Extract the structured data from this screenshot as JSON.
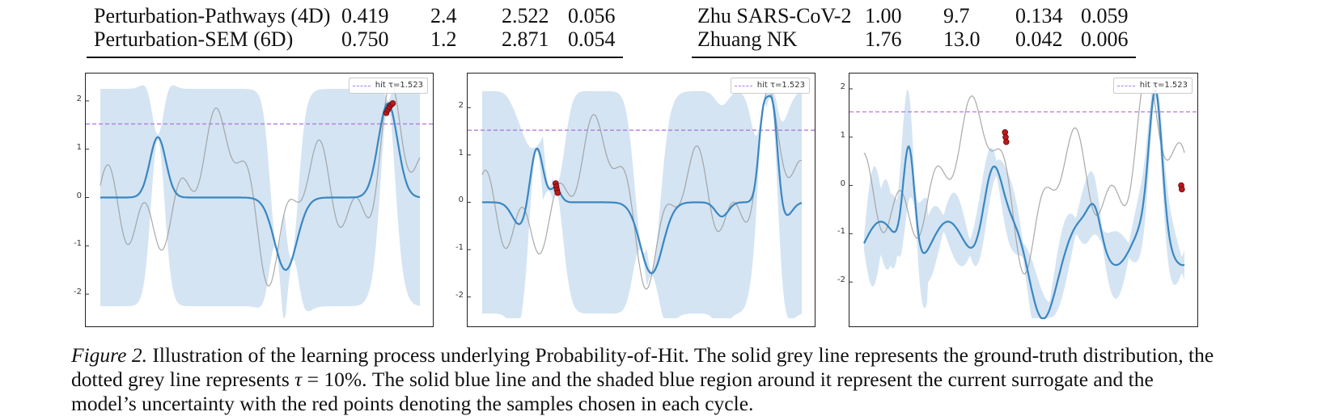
{
  "table_left": {
    "rows": [
      {
        "name": "Perturbation-Pathways (4D)",
        "c1": "0.419",
        "c2": "2.4",
        "c3": "2.522",
        "c4": "0.056"
      },
      {
        "name": "Perturbation-SEM (6D)",
        "c1": "0.750",
        "c2": "1.2",
        "c3": "2.871",
        "c4": "0.054"
      }
    ]
  },
  "table_right": {
    "rows": [
      {
        "name": "Zhu SARS-CoV-2",
        "c1": "1.00",
        "c2": "9.7",
        "c3": "0.134",
        "c4": "0.059"
      },
      {
        "name": "Zhuang NK",
        "c1": "1.76",
        "c2": "13.0",
        "c3": "0.042",
        "c4": "0.006"
      }
    ]
  },
  "figure": {
    "legend_label": "hit τ=1.523",
    "threshold": 1.523,
    "colors": {
      "surrogate": "#3a86c0",
      "band": "#c6dbef",
      "truth": "#9a9a9a",
      "threshold": "#b07be0",
      "points": "#c0181b"
    },
    "panels": [
      {
        "ytick_labels": [
          "2",
          "1",
          "0",
          "-1",
          "-2"
        ],
        "ylim": [
          -2.5,
          2.4
        ]
      },
      {
        "ytick_labels": [
          "2",
          "1",
          "0",
          "-1",
          "-2"
        ],
        "ylim": [
          -2.45,
          2.55
        ]
      },
      {
        "ytick_labels": [
          "2",
          "1",
          "0",
          "-1",
          "-2"
        ],
        "ylim": [
          -2.75,
          2.15
        ]
      }
    ]
  },
  "caption": {
    "fig_label": "Figure 2.",
    "line1": " Illustration of the learning process underlying Probability-of-Hit. The solid grey line represents the ground-truth distribution, the",
    "line2_pre": "dotted grey line represents ",
    "tau": "τ",
    "line2_eq": " = 10%. ",
    "line2_post": "The solid blue line and the shaded blue region around it represent the current surrogate and the",
    "line3": "model’s uncertainty with the red points denoting the samples chosen in each cycle."
  }
}
